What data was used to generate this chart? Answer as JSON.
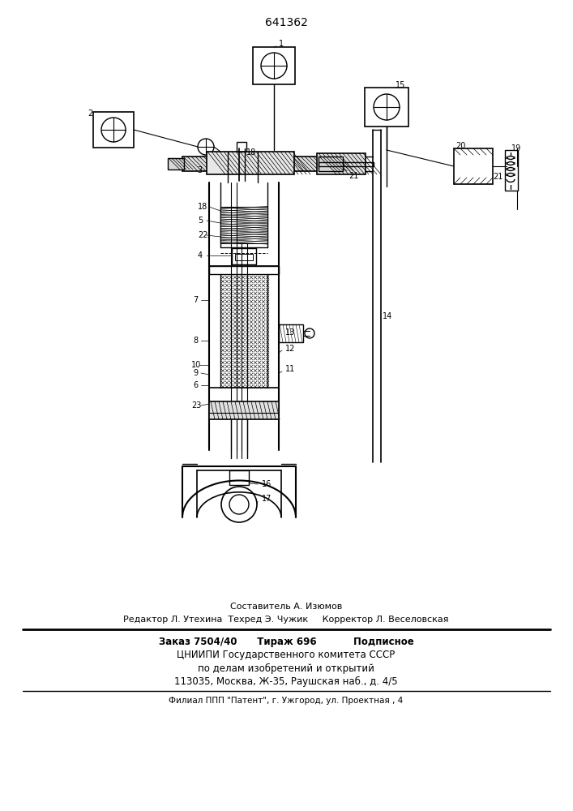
{
  "patent_number": "641362",
  "bg_color": "#ffffff",
  "footer_lines": [
    "Составитель А. Изюмов",
    "Редактор Л. Утехина  Техред Э. Чужик     Корректор Л. Веселовская",
    "Заказ 7504/40      Тираж 696           Подписное",
    "ЦНИИПИ Государственного комитета СССР",
    "по делам изобретений и открытий",
    "113035, Москва, Ж-35, Раушская наб., д. 4/5",
    "Филиал ППП \"Патент\", г. Ужгород, ул. Проектная , 4"
  ]
}
